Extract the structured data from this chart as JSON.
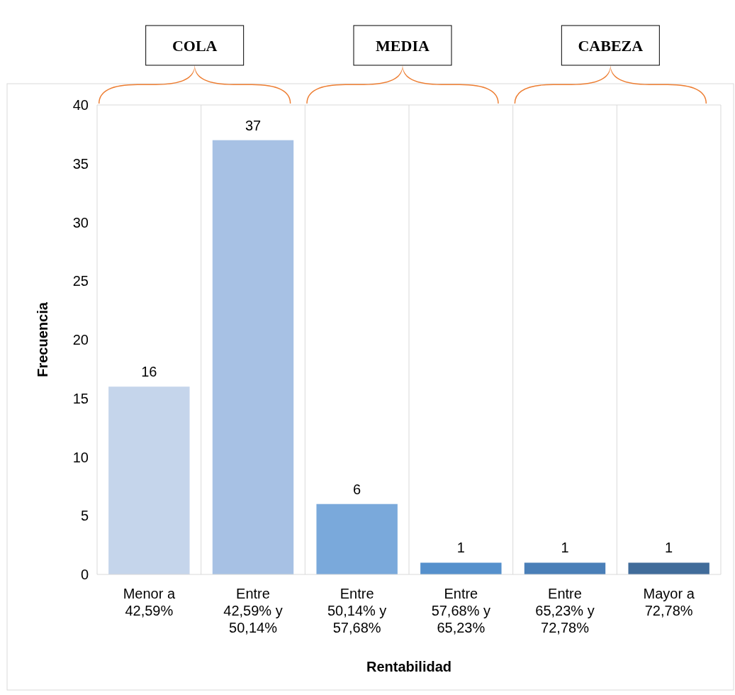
{
  "chart_data": {
    "type": "bar",
    "xlabel": "Rentabilidad",
    "ylabel": "Frecuencia",
    "categories": [
      "Menor a 42,59%",
      "Entre 42,59% y 50,14%",
      "Entre 50,14% y 57,68%",
      "Entre 57,68% y 65,23%",
      "Entre 65,23% y 72,78%",
      "Mayor a 72,78%"
    ],
    "values": [
      16,
      37,
      6,
      1,
      1,
      1
    ],
    "colors": [
      "#c5d5eb",
      "#a7c1e4",
      "#7aa9db",
      "#5590cc",
      "#4a7fb8",
      "#416c9a"
    ],
    "ylim": [
      0,
      40
    ],
    "yticks": [
      0,
      5,
      10,
      15,
      20,
      25,
      30,
      35,
      40
    ],
    "grid": "x",
    "data_labels": true,
    "annotations": [
      "COLA",
      "MEDIA",
      "CABEZA"
    ]
  }
}
